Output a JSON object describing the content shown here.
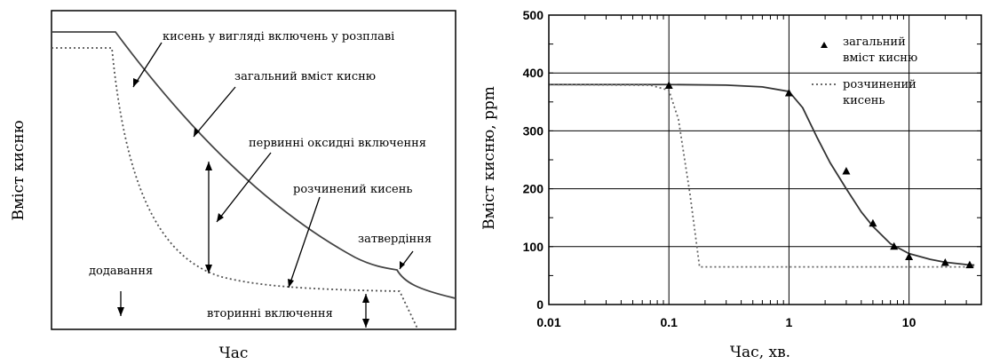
{
  "chart_data": [
    {
      "type": "line",
      "xlabel": "Час",
      "ylabel": "Вміст кисню",
      "series": [
        {
          "name": "загальний вміст кисню",
          "style": "solid"
        },
        {
          "name": "розчинений кисень",
          "style": "dotted"
        }
      ],
      "annotations": {
        "inclusions_melt": "кисень у вигляді включень у розплаві",
        "total_oxygen": "загальний вміст кисню",
        "primary": "первинні оксидні включення",
        "dissolved": "розчинений кисень",
        "solidification": "затвердіння",
        "addition": "додавання",
        "secondary": "вторинні включення"
      }
    },
    {
      "type": "line",
      "xscale": "log",
      "xlabel": "Час, хв.",
      "ylabel": "Вміст кисню, ppm",
      "xlim": [
        0.01,
        40
      ],
      "ylim": [
        0,
        500
      ],
      "xticks": [
        {
          "v": 0.01,
          "label": "0.01"
        },
        {
          "v": 0.1,
          "label": "0.1"
        },
        {
          "v": 1,
          "label": "1"
        },
        {
          "v": 10,
          "label": "10"
        }
      ],
      "yticks": [
        {
          "v": 0,
          "label": "0"
        },
        {
          "v": 100,
          "label": "100"
        },
        {
          "v": 200,
          "label": "200"
        },
        {
          "v": 300,
          "label": "300"
        },
        {
          "v": 400,
          "label": "400"
        },
        {
          "v": 500,
          "label": "500"
        }
      ],
      "grid": true,
      "legend": {
        "position": "top-right",
        "total_line1": "загальний",
        "total_line2": "вміст кисню",
        "dissolved_line1": "розчинений",
        "dissolved_line2": "кисень"
      },
      "series": [
        {
          "name": "загальний вміст кисню",
          "style": "solid",
          "points": [
            [
              0.01,
              380
            ],
            [
              0.1,
              380
            ],
            [
              0.3,
              379
            ],
            [
              0.6,
              376
            ],
            [
              1,
              368
            ],
            [
              1.3,
              340
            ],
            [
              1.7,
              290
            ],
            [
              2.2,
              245
            ],
            [
              3,
              200
            ],
            [
              4,
              160
            ],
            [
              5,
              135
            ],
            [
              7,
              105
            ],
            [
              10,
              88
            ],
            [
              15,
              78
            ],
            [
              20,
              73
            ],
            [
              30,
              69
            ],
            [
              35,
              68
            ]
          ]
        },
        {
          "name": "розчинений кисень",
          "style": "dotted",
          "points": [
            [
              0.01,
              380
            ],
            [
              0.07,
              379
            ],
            [
              0.1,
              370
            ],
            [
              0.12,
              320
            ],
            [
              0.15,
              190
            ],
            [
              0.18,
              65
            ],
            [
              35,
              65
            ]
          ]
        },
        {
          "name": "загальний вміст кисню (вимір.)",
          "style": "markers",
          "marker": "triangle",
          "points": [
            [
              0.1,
              378
            ],
            [
              1,
              365
            ],
            [
              3,
              230
            ],
            [
              5,
              140
            ],
            [
              7.5,
              100
            ],
            [
              10,
              82
            ],
            [
              20,
              72
            ],
            [
              32,
              68
            ]
          ]
        }
      ]
    }
  ]
}
